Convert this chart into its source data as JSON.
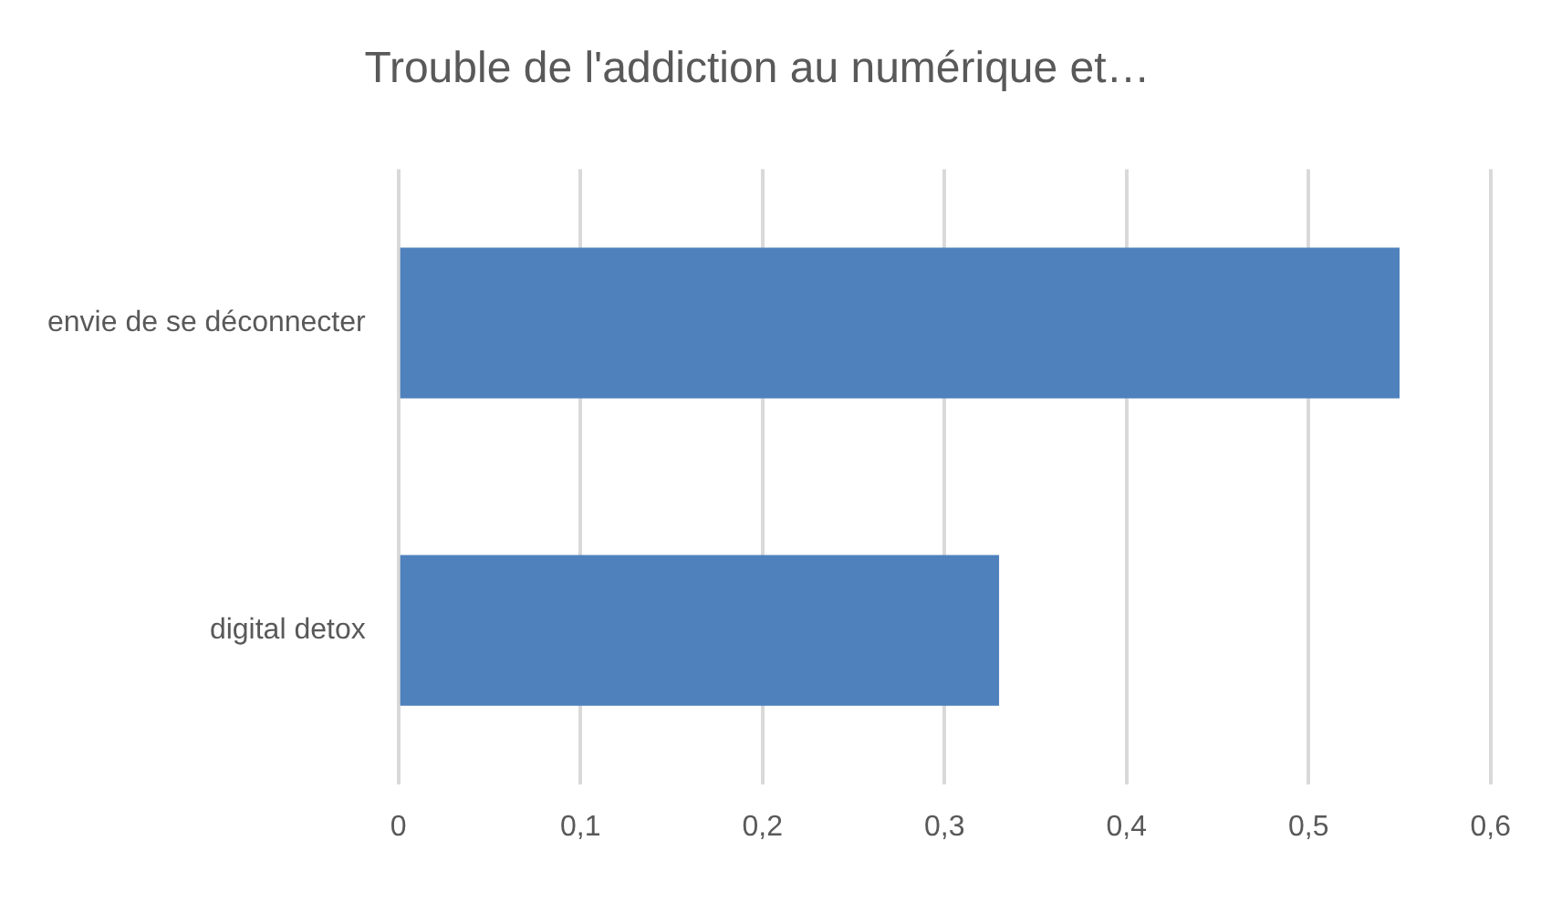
{
  "chart_data": {
    "type": "bar",
    "orientation": "horizontal",
    "title": "Trouble de l'addiction au numérique et…",
    "categories": [
      "envie de se déconnecter",
      "digital detox"
    ],
    "values": [
      0.55,
      0.33
    ],
    "color": "#4f81bd",
    "xlim": [
      0,
      0.6
    ],
    "xticks": [
      0,
      {
        "value": 0.1,
        "label": "0,1"
      },
      {
        "value": 0.2,
        "label": "0,2"
      },
      {
        "value": 0.3,
        "label": "0,3"
      },
      {
        "value": 0.4,
        "label": "0,4"
      },
      {
        "value": 0.5,
        "label": "0,5"
      },
      {
        "value": 0.6,
        "label": "0,6"
      }
    ],
    "grid": "x",
    "legend": false
  }
}
